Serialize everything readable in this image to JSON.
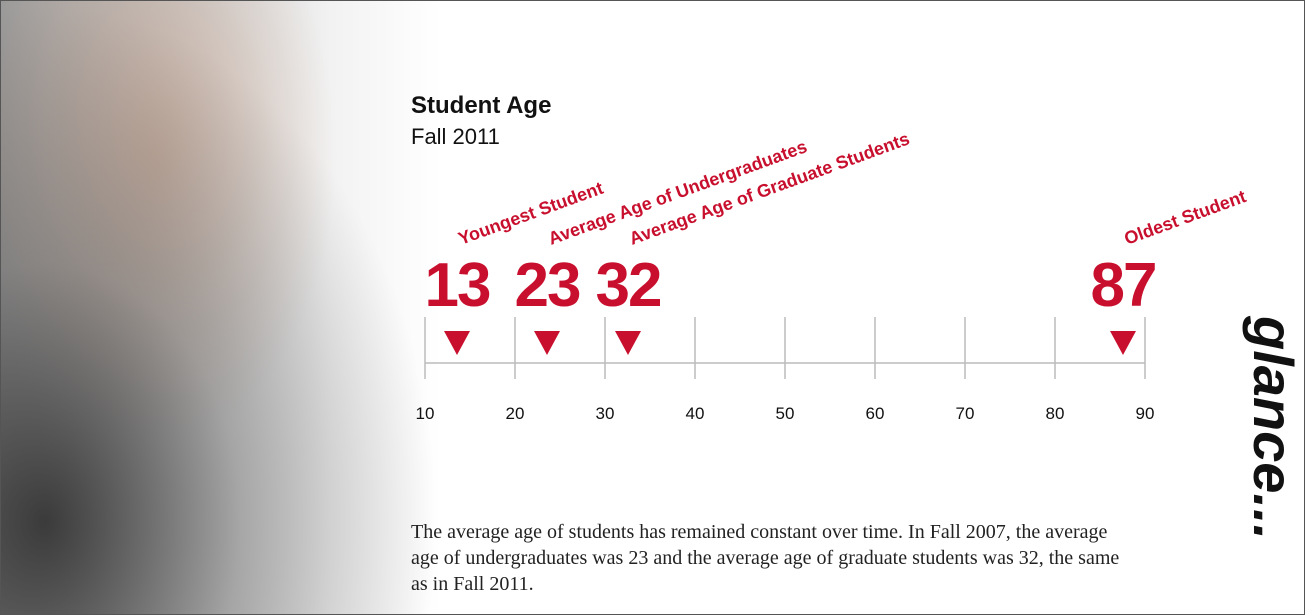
{
  "chart_data": {
    "type": "marker",
    "title": "Student Age",
    "subtitle": "Fall 2011",
    "categories": [
      "Youngest Student",
      "Average Age of Undergraduates",
      "Average Age of Graduate Students",
      "Oldest Student"
    ],
    "values": [
      13,
      23,
      32,
      87
    ],
    "color": "#c8102e",
    "xlim": [
      10,
      90
    ],
    "xticks": [
      10,
      20,
      30,
      40,
      50,
      60,
      70,
      80,
      90
    ],
    "grid": true,
    "note": "The average age of students has remained constant over time. In Fall 2007, the average age of undergraduates was 23 and the average age of graduate students was 32, the same as in Fall 2011."
  },
  "sidebar": {
    "text": "glance..."
  }
}
